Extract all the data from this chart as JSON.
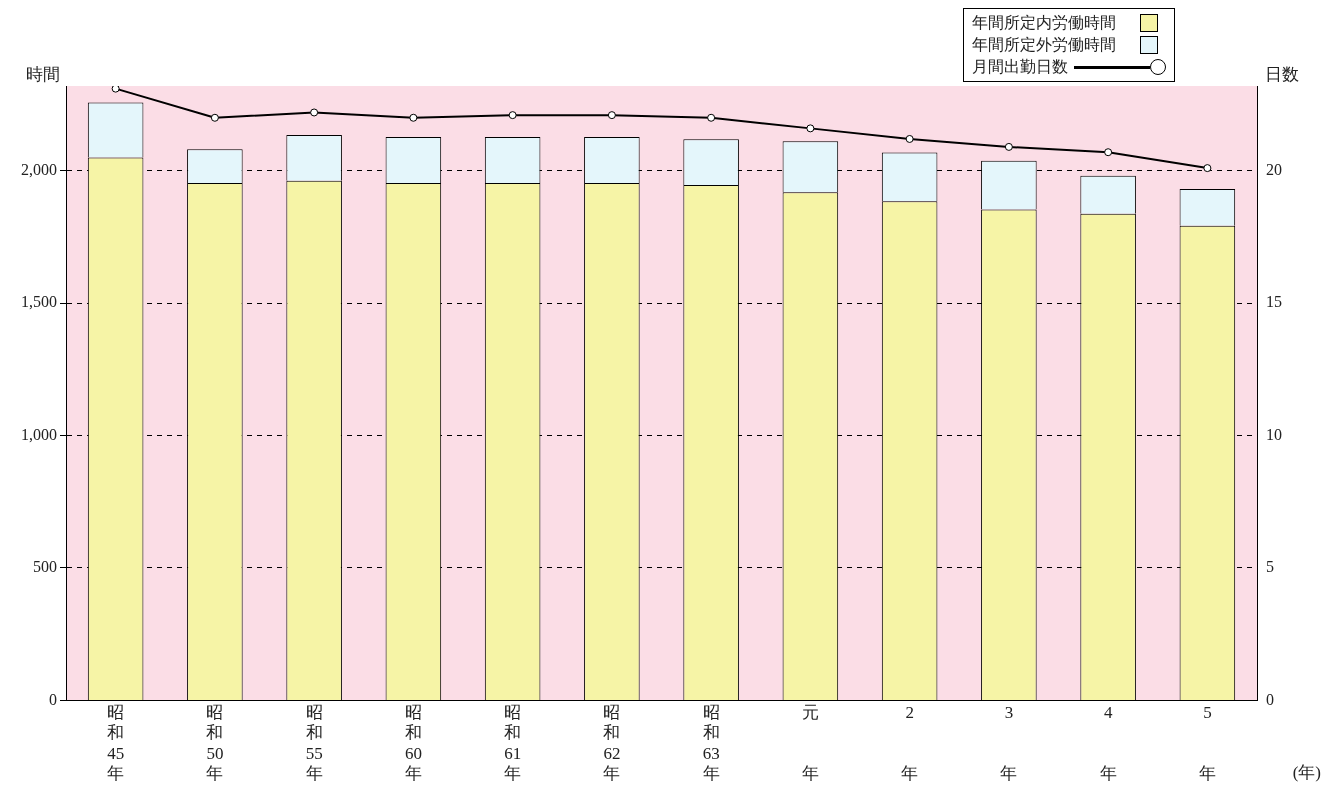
{
  "chart_data": {
    "type": "bar",
    "stacked": true,
    "ylabel": "時間",
    "y2label": "日数",
    "xlabel": "(年)",
    "categories": [
      "昭和45年",
      "昭和50年",
      "昭和55年",
      "昭和60年",
      "昭和61年",
      "昭和62年",
      "昭和63年",
      "元年",
      "2年",
      "3年",
      "4年",
      "5年"
    ],
    "series": [
      {
        "name": "年間所定内労働時間",
        "color": "#f6f4a6",
        "values": [
          2050,
          1954,
          1962,
          1954,
          1954,
          1954,
          1946,
          1919,
          1885,
          1854,
          1838,
          1792
        ]
      },
      {
        "name": "年間所定外労働時間",
        "color": "#e4f6fb",
        "values": [
          208,
          127,
          173,
          173,
          173,
          173,
          173,
          192,
          184,
          184,
          143,
          139
        ]
      },
      {
        "name": "月間出勤日数",
        "type": "line",
        "axis": "y2",
        "color": "#000000",
        "marker": "circle",
        "values": [
          23.1,
          22.0,
          22.2,
          22.0,
          22.1,
          22.1,
          22.0,
          21.6,
          21.2,
          20.9,
          20.7,
          20.1
        ]
      }
    ],
    "ylim": [
      0,
      2320
    ],
    "yticks": [
      0,
      500,
      {
        "value": 1000,
        "label": "1,000"
      },
      {
        "value": 1500,
        "label": "1,500"
      },
      {
        "value": 2000,
        "label": "2,000"
      }
    ],
    "y2lim": [
      0,
      23.2
    ],
    "y2ticks": [
      0,
      5,
      10,
      15,
      20
    ],
    "grid": "y",
    "legend": "top right"
  }
}
